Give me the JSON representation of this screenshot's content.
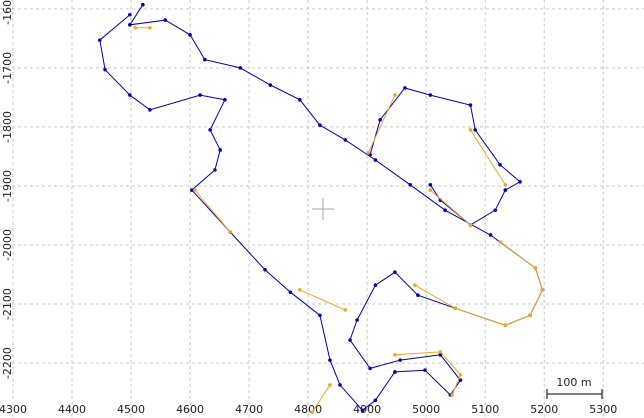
{
  "chart_data": {
    "type": "line",
    "xlim": [
      4278,
      5369
    ],
    "ylim": [
      -2293,
      -1585
    ],
    "xticks": [
      4300,
      4400,
      4500,
      4600,
      4700,
      4800,
      4900,
      5000,
      5100,
      5200,
      5300
    ],
    "yticks": [
      -1600,
      -1700,
      -1800,
      -1900,
      -2000,
      -2100,
      -2200
    ],
    "grid": true,
    "scale_label": "100 m",
    "series": [
      {
        "color": "#0000b8",
        "x": [
          4520,
          4498,
          4558,
          4600,
          4625,
          4685,
          4736,
          4786,
          4820,
          4863,
          4914,
          4973,
          5032,
          5109,
          5185,
          5197,
          5176,
          5134,
          5049,
          4986,
          4947,
          4914,
          4883,
          4871,
          4905,
          4956,
          5024,
          5058,
          5041,
          4998,
          4947,
          4914,
          4892,
          4854,
          4837,
          4820,
          4770,
          4727,
          4668,
          4603,
          4642,
          4651,
          4634,
          4659,
          4617,
          4532,
          4498,
          4456,
          4447,
          4498,
          null,
          4905,
          4922,
          4964,
          5007,
          5075,
          5083,
          5125,
          5159,
          5134,
          5117,
          5075,
          5024,
          5007
        ],
        "y": [
          -1593,
          -1627,
          -1619,
          -1644,
          -1686,
          -1700,
          -1729,
          -1754,
          -1797,
          -1822,
          -1856,
          -1898,
          -1941,
          -1983,
          -2039,
          -2076,
          -2119,
          -2136,
          -2107,
          -2085,
          -2046,
          -2068,
          -2127,
          -2161,
          -2209,
          -2195,
          -2186,
          -2229,
          -2254,
          -2212,
          -2215,
          -2263,
          -2280,
          -2237,
          -2195,
          -2119,
          -2080,
          -2042,
          -1978,
          -1907,
          -1873,
          -1839,
          -1805,
          -1754,
          -1746,
          -1771,
          -1746,
          -1703,
          -1653,
          -1610,
          null,
          -1847,
          -1788,
          -1734,
          -1746,
          -1763,
          -1805,
          -1864,
          -1893,
          -1907,
          -1941,
          -1966,
          -1924,
          -1898
        ]
      },
      {
        "color": "#f0a820",
        "x": [
          4507,
          4532,
          null,
          4608,
          4668,
          null,
          4786,
          4863,
          null,
          4947,
          5024,
          5058,
          5044,
          null,
          4837,
          4807,
          null,
          4981,
          5049,
          5134,
          5176,
          5197,
          5185,
          5126,
          null,
          4902,
          4947,
          null,
          5075,
          5134,
          null,
          5007,
          5075
        ],
        "y": [
          -1632,
          -1632,
          null,
          -1907,
          -1978,
          null,
          -2076,
          -2110,
          null,
          -2186,
          -2181,
          -2220,
          -2254,
          null,
          -2237,
          -2283,
          null,
          -2068,
          -2107,
          -2136,
          -2119,
          -2076,
          -2039,
          -1995,
          null,
          -1844,
          -1746,
          null,
          -1805,
          -1898,
          null,
          -1907,
          -1966
        ]
      }
    ]
  }
}
